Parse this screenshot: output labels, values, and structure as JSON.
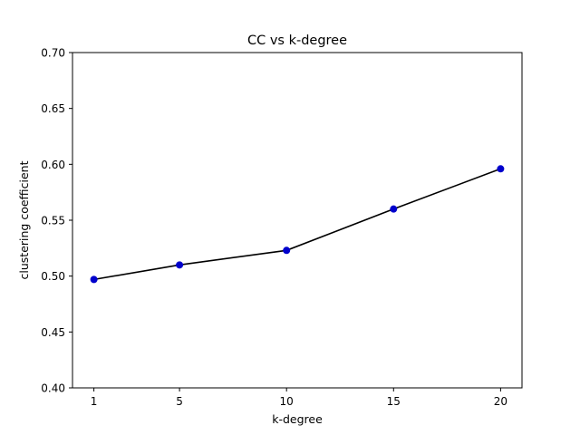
{
  "chart_data": {
    "type": "line",
    "title": "CC vs k-degree",
    "xlabel": "k-degree",
    "ylabel": "clustering coefficient",
    "x": [
      1,
      5,
      10,
      15,
      20
    ],
    "y": [
      0.497,
      0.51,
      0.523,
      0.56,
      0.596
    ],
    "xticks": [
      "1",
      "5",
      "10",
      "15",
      "20"
    ],
    "yticks": [
      "0.40",
      "0.45",
      "0.50",
      "0.55",
      "0.60",
      "0.65",
      "0.70"
    ],
    "xlim": [
      0,
      21
    ],
    "ylim": [
      0.4,
      0.7
    ],
    "grid": false,
    "line_color": "#000000",
    "marker_color": "#0000cc"
  }
}
